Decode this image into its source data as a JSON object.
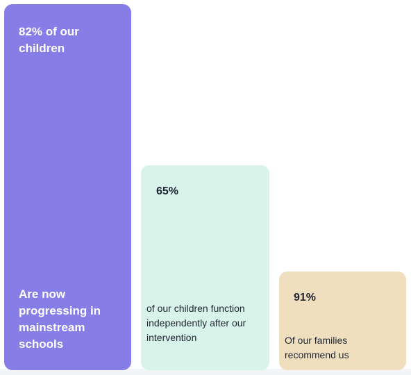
{
  "cards": [
    {
      "stat": "82% of our children",
      "caption": "Are now progressing in mainstream schools"
    },
    {
      "stat": "65%",
      "caption": "of our children function independently after our intervention"
    },
    {
      "stat": "91%",
      "caption": "Of our families recommend us"
    }
  ],
  "colors": {
    "card_1": "#877de6",
    "card_2": "#d8f3ea",
    "card_3": "#efdfbf",
    "text_light": "#ffffff",
    "text_dark": "#1f2430"
  }
}
